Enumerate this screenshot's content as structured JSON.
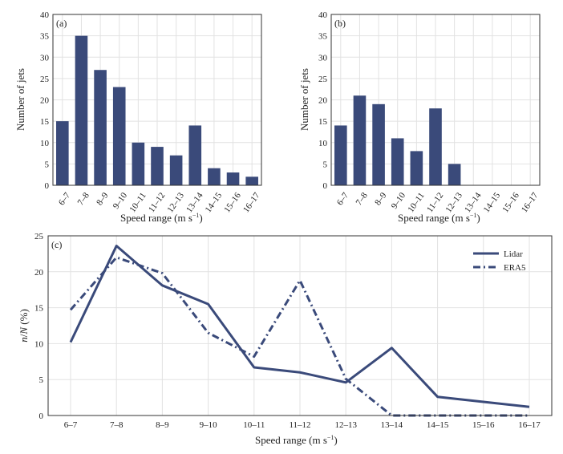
{
  "chart_data": [
    {
      "type": "bar",
      "panel_label": "(a)",
      "categories": [
        "6–7",
        "7–8",
        "8–9",
        "9–10",
        "10–11",
        "11–12",
        "12–13",
        "13–14",
        "14–15",
        "15–16",
        "16–17"
      ],
      "values": [
        15,
        35,
        27,
        23,
        10,
        9,
        7,
        14,
        4,
        3,
        2
      ],
      "xlabel": "Speed range (m s",
      "xlabel_sup": "−1",
      "xlabel_end": ")",
      "ylabel": "Number of jets",
      "ylim": [
        0,
        40
      ],
      "yticks": [
        0,
        5,
        10,
        15,
        20,
        25,
        30,
        35,
        40
      ],
      "grid": true
    },
    {
      "type": "bar",
      "panel_label": "(b)",
      "categories": [
        "6–7",
        "7–8",
        "8–9",
        "9–10",
        "10–11",
        "11–12",
        "12–13",
        "13–14",
        "14–15",
        "15–16",
        "16–17"
      ],
      "values": [
        14,
        21,
        19,
        11,
        8,
        18,
        5,
        0,
        0,
        0,
        0
      ],
      "xlabel": "Speed range (m s",
      "xlabel_sup": "−1",
      "xlabel_end": ")",
      "ylabel": "Number of jets",
      "ylim": [
        0,
        40
      ],
      "yticks": [
        0,
        5,
        10,
        15,
        20,
        25,
        30,
        35,
        40
      ],
      "grid": true
    },
    {
      "type": "line",
      "panel_label": "(c)",
      "categories": [
        "6–7",
        "7–8",
        "8–9",
        "9–10",
        "10–11",
        "11–12",
        "12–13",
        "13–14",
        "14–15",
        "15–16",
        "16–17"
      ],
      "series": [
        {
          "name": "Lidar",
          "style": "solid",
          "values": [
            10.2,
            23.6,
            18.1,
            15.5,
            6.7,
            6.0,
            4.6,
            9.4,
            2.6,
            1.9,
            1.2
          ]
        },
        {
          "name": "ERA5",
          "style": "dashed",
          "values": [
            14.7,
            22.0,
            19.8,
            11.5,
            8.2,
            18.8,
            5.1,
            0,
            0,
            0,
            0
          ]
        }
      ],
      "xlabel": "Speed range (m s",
      "xlabel_sup": "−1",
      "xlabel_end": ")",
      "ylabel_pre": "n",
      "ylabel_mid": "/",
      "ylabel_n": "N",
      "ylabel_post": " (%)",
      "ylim": [
        0,
        25
      ],
      "yticks": [
        0,
        5,
        10,
        15,
        20,
        25
      ],
      "grid": true,
      "legend_position": "top-right"
    }
  ],
  "colors": {
    "bar": "#3a4a7a",
    "line": "#3a4a7a",
    "grid": "#e2e2e2",
    "axis": "#333333"
  }
}
